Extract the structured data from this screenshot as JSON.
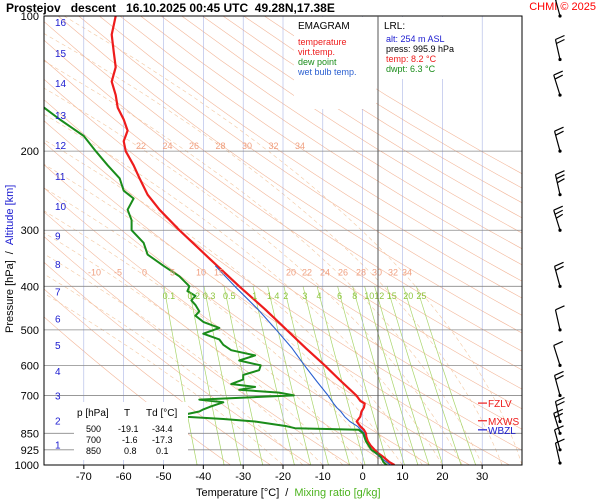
{
  "header": {
    "title": "Prostejov   descent   16.10.2025 00:45 UTC  49.28N,17.38E",
    "copyright": "CHMI © 2025"
  },
  "colors": {
    "temperature": "#ee1c1c",
    "virt_temp": "#ee1c1c",
    "dew_point": "#1a8c1a",
    "wet_bulb": "#2a5fd0",
    "isotherm": "#9aa7e0",
    "dry_adiabat": "#f3b79a",
    "moist_adiabat": "#f3c7a0",
    "mixing_ratio": "#a9d56a",
    "altitude": "#1a1ad0",
    "levels": "#ff3333"
  },
  "legend": {
    "title": "EMAGRAM",
    "items": [
      {
        "label": "temperature",
        "color": "#ee1c1c"
      },
      {
        "label": "virt.temp.",
        "color": "#ee1c1c"
      },
      {
        "label": "dew point",
        "color": "#1a8c1a"
      },
      {
        "label": "wet bulb temp.",
        "color": "#2a5fd0"
      }
    ]
  },
  "lrl": {
    "title": "LRL:",
    "alt": "alt: 254 m ASL",
    "press": "press: 995.9 hPa",
    "temp": "temp: 8.2 °C",
    "dwpt": "dwpt: 6.3 °C"
  },
  "table": {
    "headers": [
      "p [hPa]",
      "T",
      "Td [°C]"
    ],
    "rows": [
      [
        "500",
        "-19.1",
        "-34.4"
      ],
      [
        "700",
        "-1.6",
        "-17.3"
      ],
      [
        "850",
        "0.8",
        "0.1"
      ]
    ]
  },
  "level_markers": [
    {
      "label": "FZLV",
      "p": 728,
      "color": "#ee1c1c"
    },
    {
      "label": "MXWS",
      "p": 797,
      "color": "#ee1c1c"
    },
    {
      "label": "WBZL",
      "p": 835,
      "color": "#1a1ad0"
    }
  ],
  "chart_data": {
    "type": "line",
    "title": "Prostejov   descent   16.10.2025 00:45 UTC  49.28N,17.38E",
    "xlabel": "Temperature [°C]",
    "xlabel_separator": "/",
    "xlabel2": "Mixing ratio [g/kg]",
    "ylabel": "Pressure [hPa]",
    "ylabel_separator": "/",
    "ylabel2": "Altitude [km]",
    "y_scale": "log",
    "xlim": [
      -80,
      40
    ],
    "ylim": [
      1000,
      100
    ],
    "x_ticks": [
      -70,
      -60,
      -50,
      -40,
      -30,
      -20,
      -10,
      0,
      10,
      20,
      30
    ],
    "pressure_ticks": [
      100,
      200,
      300,
      400,
      500,
      600,
      700,
      850,
      925,
      1000
    ],
    "altitude_ticks": [
      {
        "km": "1",
        "p": 900
      },
      {
        "km": "2",
        "p": 795
      },
      {
        "km": "3",
        "p": 700
      },
      {
        "km": "4",
        "p": 617
      },
      {
        "km": "5",
        "p": 541
      },
      {
        "km": "6",
        "p": 472
      },
      {
        "km": "7",
        "p": 411
      },
      {
        "km": "8",
        "p": 357
      },
      {
        "km": "9",
        "p": 308
      },
      {
        "km": "10",
        "p": 265
      },
      {
        "km": "11",
        "p": 227
      },
      {
        "km": "12",
        "p": 194
      },
      {
        "km": "13",
        "p": 166
      },
      {
        "km": "14",
        "p": 141
      },
      {
        "km": "15",
        "p": 121
      },
      {
        "km": "16",
        "p": 103
      }
    ],
    "mixing_ratio_labels": {
      "p": 420,
      "values": [
        0.1,
        0.2,
        0.3,
        0.5,
        1,
        1.4,
        2,
        3,
        4,
        6,
        8,
        10,
        12,
        15,
        20,
        25
      ],
      "label_text": [
        "0.1",
        "0.2",
        "0.3",
        "0.5",
        "1",
        "1.4",
        "2",
        "3",
        "4",
        "6",
        "8",
        "10",
        "12",
        "15",
        "20",
        "25"
      ]
    },
    "adiabat_labels_upper": {
      "p": 200,
      "values": [
        22,
        24,
        26,
        28,
        30,
        32,
        34
      ]
    },
    "adiabat_labels_lower": {
      "p": 380,
      "values": [
        -10,
        -5,
        0,
        5,
        10,
        15,
        20,
        22,
        24,
        26,
        28,
        30,
        32,
        34
      ]
    },
    "series": [
      {
        "name": "temperature",
        "p": [
          1000,
          985,
          960,
          940,
          925,
          905,
          885,
          865,
          850,
          835,
          820,
          800,
          780,
          760,
          745,
          730,
          720,
          700,
          650,
          600,
          550,
          500,
          450,
          400,
          350,
          300,
          270,
          250,
          230,
          215,
          200,
          190,
          180,
          170,
          160,
          150,
          140,
          130,
          120,
          110,
          100
        ],
        "t": [
          8.0,
          6.7,
          5.2,
          3.8,
          3.0,
          2.0,
          1.3,
          0.9,
          0.8,
          0.3,
          -0.6,
          -1.5,
          -0.6,
          -0.3,
          0.3,
          0.5,
          -0.6,
          -1.6,
          -5.5,
          -9.5,
          -14.2,
          -19.1,
          -24.5,
          -31,
          -38,
          -46,
          -51,
          -54,
          -56,
          -57.5,
          -59.5,
          -60,
          -59,
          -60,
          -61.5,
          -62,
          -63,
          -62,
          -62.5,
          -63,
          -62
        ]
      },
      {
        "name": "wet bulb temp.",
        "p": [
          1000,
          960,
          925,
          885,
          850,
          820,
          800,
          780,
          760,
          745,
          730,
          700,
          650,
          600,
          550,
          500,
          450,
          400,
          360
        ],
        "t": [
          7.0,
          4.3,
          2.2,
          0.8,
          0.4,
          -1.3,
          -3.2,
          -4.5,
          -5.5,
          -6.5,
          -7.3,
          -8.7,
          -11.6,
          -14.6,
          -17.7,
          -21.7,
          -26.3,
          -32.1,
          -37
        ]
      },
      {
        "name": "dew point",
        "p": [
          1000,
          985,
          960,
          940,
          925,
          905,
          885,
          865,
          850,
          835,
          828,
          820,
          810,
          800,
          790,
          780,
          770,
          760,
          752,
          740,
          725,
          715,
          700,
          690,
          680,
          670,
          660,
          645,
          630,
          615,
          600,
          585,
          570,
          555,
          540,
          525,
          510,
          495,
          480,
          465,
          455,
          440,
          430,
          420,
          410,
          400,
          380,
          360,
          340,
          320,
          300,
          285,
          270,
          255,
          245,
          230,
          215,
          200,
          185,
          170,
          160
        ],
        "t": [
          6.0,
          5.2,
          4.6,
          3.3,
          2.2,
          1.5,
          0.8,
          0.4,
          0.1,
          -1.0,
          -17,
          -19,
          -23,
          -27,
          -35,
          -45,
          -44,
          -41,
          -40,
          -38,
          -35,
          -41,
          -17.3,
          -21,
          -31,
          -27,
          -33,
          -30,
          -30,
          -26,
          -25.6,
          -31,
          -27,
          -33,
          -35,
          -36,
          -40,
          -36,
          -40,
          -42,
          -41,
          -42,
          -43,
          -42,
          -44,
          -43.5,
          -46,
          -50,
          -54,
          -55,
          -58,
          -58,
          -59,
          -57.5,
          -60,
          -61,
          -64,
          -67,
          -70,
          -76,
          -80
        ]
      }
    ],
    "wind_barbs": {
      "p": [
        990,
        925,
        850,
        800,
        700,
        600,
        500,
        400,
        300,
        250,
        200,
        150,
        125,
        100
      ],
      "speed_kt": [
        5,
        10,
        15,
        15,
        15,
        10,
        10,
        20,
        25,
        25,
        20,
        15,
        20,
        20
      ]
    }
  }
}
